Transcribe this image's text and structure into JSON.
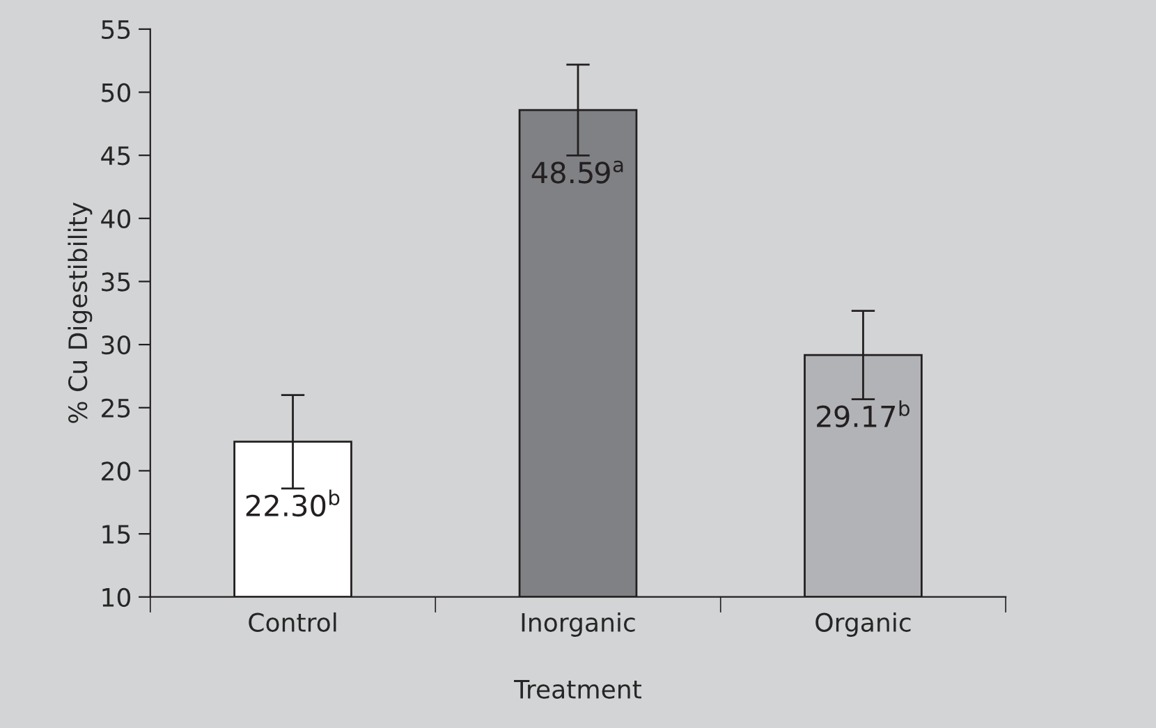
{
  "chart_data": {
    "type": "bar",
    "xlabel": "Treatment",
    "ylabel": "% Cu Digestibility",
    "categories": [
      "Control",
      "Inorganic",
      "Organic"
    ],
    "values": [
      22.3,
      48.59,
      29.17
    ],
    "colors": [
      "#ffffff",
      "#808184",
      "#b2b3b6"
    ],
    "errors": [
      3.7,
      3.6,
      3.5
    ],
    "value_labels": [
      "22.30$^{b}$",
      "48.59$^{a}$",
      "29.17$^{b}$"
    ],
    "ylim": [
      10,
      55
    ],
    "yticks": [
      10,
      15,
      20,
      25,
      30,
      35,
      40,
      45,
      50,
      55
    ],
    "grid": false,
    "legend": false
  }
}
